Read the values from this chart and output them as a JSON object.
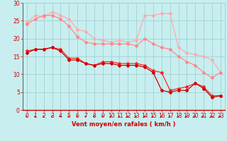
{
  "xlabel": "Vent moyen/en rafales ( km/h )",
  "xlim": [
    -0.5,
    23.5
  ],
  "ylim": [
    0,
    30
  ],
  "yticks": [
    0,
    5,
    10,
    15,
    20,
    25,
    30
  ],
  "xticks": [
    0,
    1,
    2,
    3,
    4,
    5,
    6,
    7,
    8,
    9,
    10,
    11,
    12,
    13,
    14,
    15,
    16,
    17,
    18,
    19,
    20,
    21,
    22,
    23
  ],
  "bg_color": "#c8eef0",
  "grid_color": "#99cccc",
  "line1_color": "#ffaaaa",
  "line2_color": "#ff8888",
  "line3_color": "#ff2222",
  "line4_color": "#cc0000",
  "line1_x": [
    0,
    1,
    2,
    3,
    4,
    5,
    6,
    7,
    8,
    9,
    10,
    11,
    12,
    13,
    14,
    15,
    16,
    17,
    18,
    19,
    20,
    21,
    22,
    23
  ],
  "line1_y": [
    24.5,
    26.5,
    26.0,
    27.5,
    26.5,
    25.5,
    22.5,
    22.0,
    20.0,
    19.5,
    19.0,
    19.5,
    19.0,
    19.5,
    26.5,
    26.5,
    27.0,
    27.0,
    17.5,
    16.0,
    15.5,
    15.0,
    14.0,
    10.5
  ],
  "line2_x": [
    0,
    1,
    2,
    3,
    4,
    5,
    6,
    7,
    8,
    9,
    10,
    11,
    12,
    13,
    14,
    15,
    16,
    17,
    18,
    19,
    20,
    21,
    22,
    23
  ],
  "line2_y": [
    24.0,
    25.5,
    26.5,
    26.5,
    25.5,
    23.5,
    20.5,
    19.0,
    18.5,
    18.5,
    18.5,
    18.5,
    18.5,
    18.0,
    20.0,
    18.5,
    17.5,
    17.0,
    15.0,
    13.5,
    12.5,
    10.5,
    9.0,
    10.5
  ],
  "line3_x": [
    0,
    1,
    2,
    3,
    4,
    5,
    6,
    7,
    8,
    9,
    10,
    11,
    12,
    13,
    14,
    15,
    16,
    17,
    18,
    19,
    20,
    21,
    22,
    23
  ],
  "line3_y": [
    16.5,
    17.0,
    17.0,
    17.5,
    17.0,
    14.5,
    14.5,
    13.0,
    12.5,
    13.5,
    13.5,
    13.0,
    13.0,
    13.0,
    12.5,
    11.0,
    10.5,
    5.5,
    6.0,
    6.5,
    7.5,
    6.5,
    4.0,
    4.0
  ],
  "line4_x": [
    0,
    1,
    2,
    3,
    4,
    5,
    6,
    7,
    8,
    9,
    10,
    11,
    12,
    13,
    14,
    15,
    16,
    17,
    18,
    19,
    20,
    21,
    22,
    23
  ],
  "line4_y": [
    16.0,
    17.0,
    17.0,
    17.5,
    16.5,
    14.0,
    14.0,
    13.0,
    12.5,
    13.0,
    13.0,
    12.5,
    12.5,
    12.5,
    12.0,
    10.5,
    5.5,
    5.0,
    5.5,
    5.5,
    7.5,
    6.0,
    3.5,
    4.0
  ],
  "marker": "D",
  "marker_size": 2.0,
  "linewidth": 0.9,
  "xlabel_color": "#cc0000",
  "xlabel_fontsize": 6,
  "tick_fontsize": 5.5,
  "tick_color": "#cc0000",
  "arrow_color": "#cc0000"
}
